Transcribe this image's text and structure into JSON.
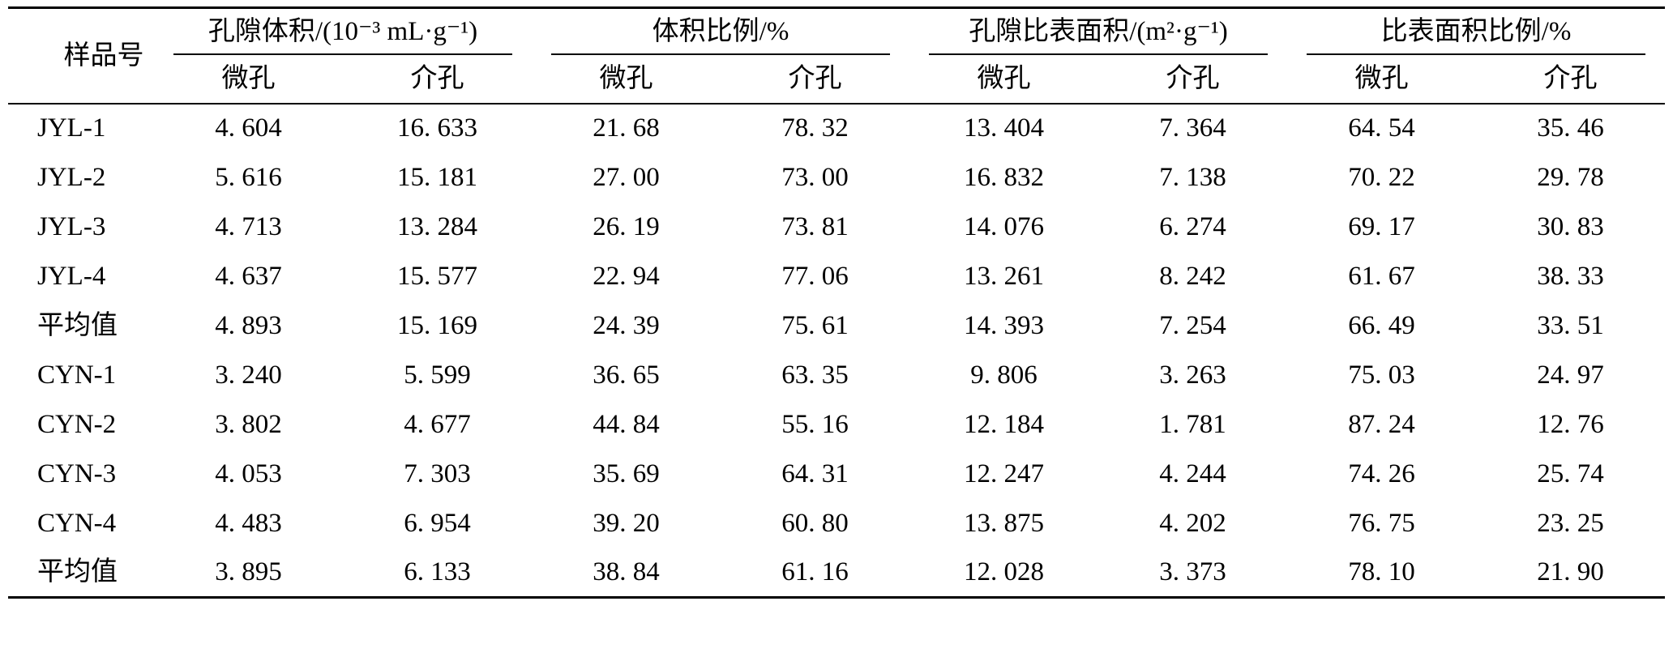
{
  "table": {
    "sample_header": "样品号",
    "groups": [
      {
        "label": "孔隙体积/(10⁻³ mL·g⁻¹)",
        "sub": [
          "微孔",
          "介孔"
        ]
      },
      {
        "label": "体积比例/%",
        "sub": [
          "微孔",
          "介孔"
        ]
      },
      {
        "label": "孔隙比表面积/(m²·g⁻¹)",
        "sub": [
          "微孔",
          "介孔"
        ]
      },
      {
        "label": "比表面积比例/%",
        "sub": [
          "微孔",
          "介孔"
        ]
      }
    ],
    "rows": [
      {
        "sample": "JYL-1",
        "values": [
          "4. 604",
          "16. 633",
          "21. 68",
          "78. 32",
          "13. 404",
          "7. 364",
          "64. 54",
          "35. 46"
        ]
      },
      {
        "sample": "JYL-2",
        "values": [
          "5. 616",
          "15. 181",
          "27. 00",
          "73. 00",
          "16. 832",
          "7. 138",
          "70. 22",
          "29. 78"
        ]
      },
      {
        "sample": "JYL-3",
        "values": [
          "4. 713",
          "13. 284",
          "26. 19",
          "73. 81",
          "14. 076",
          "6. 274",
          "69. 17",
          "30. 83"
        ]
      },
      {
        "sample": "JYL-4",
        "values": [
          "4. 637",
          "15. 577",
          "22. 94",
          "77. 06",
          "13. 261",
          "8. 242",
          "61. 67",
          "38. 33"
        ]
      },
      {
        "sample": "平均值",
        "values": [
          "4. 893",
          "15. 169",
          "24. 39",
          "75. 61",
          "14. 393",
          "7. 254",
          "66. 49",
          "33. 51"
        ]
      },
      {
        "sample": "CYN-1",
        "values": [
          "3. 240",
          "5. 599",
          "36. 65",
          "63. 35",
          "9. 806",
          "3. 263",
          "75. 03",
          "24. 97"
        ]
      },
      {
        "sample": "CYN-2",
        "values": [
          "3. 802",
          "4. 677",
          "44. 84",
          "55. 16",
          "12. 184",
          "1. 781",
          "87. 24",
          "12. 76"
        ]
      },
      {
        "sample": "CYN-3",
        "values": [
          "4. 053",
          "7. 303",
          "35. 69",
          "64. 31",
          "12. 247",
          "4. 244",
          "74. 26",
          "25. 74"
        ]
      },
      {
        "sample": "CYN-4",
        "values": [
          "4. 483",
          "6. 954",
          "39. 20",
          "60. 80",
          "13. 875",
          "4. 202",
          "76. 75",
          "23. 25"
        ]
      },
      {
        "sample": "平均值",
        "values": [
          "3. 895",
          "6. 133",
          "38. 84",
          "61. 16",
          "12. 028",
          "3. 373",
          "78. 10",
          "21. 90"
        ]
      }
    ]
  }
}
